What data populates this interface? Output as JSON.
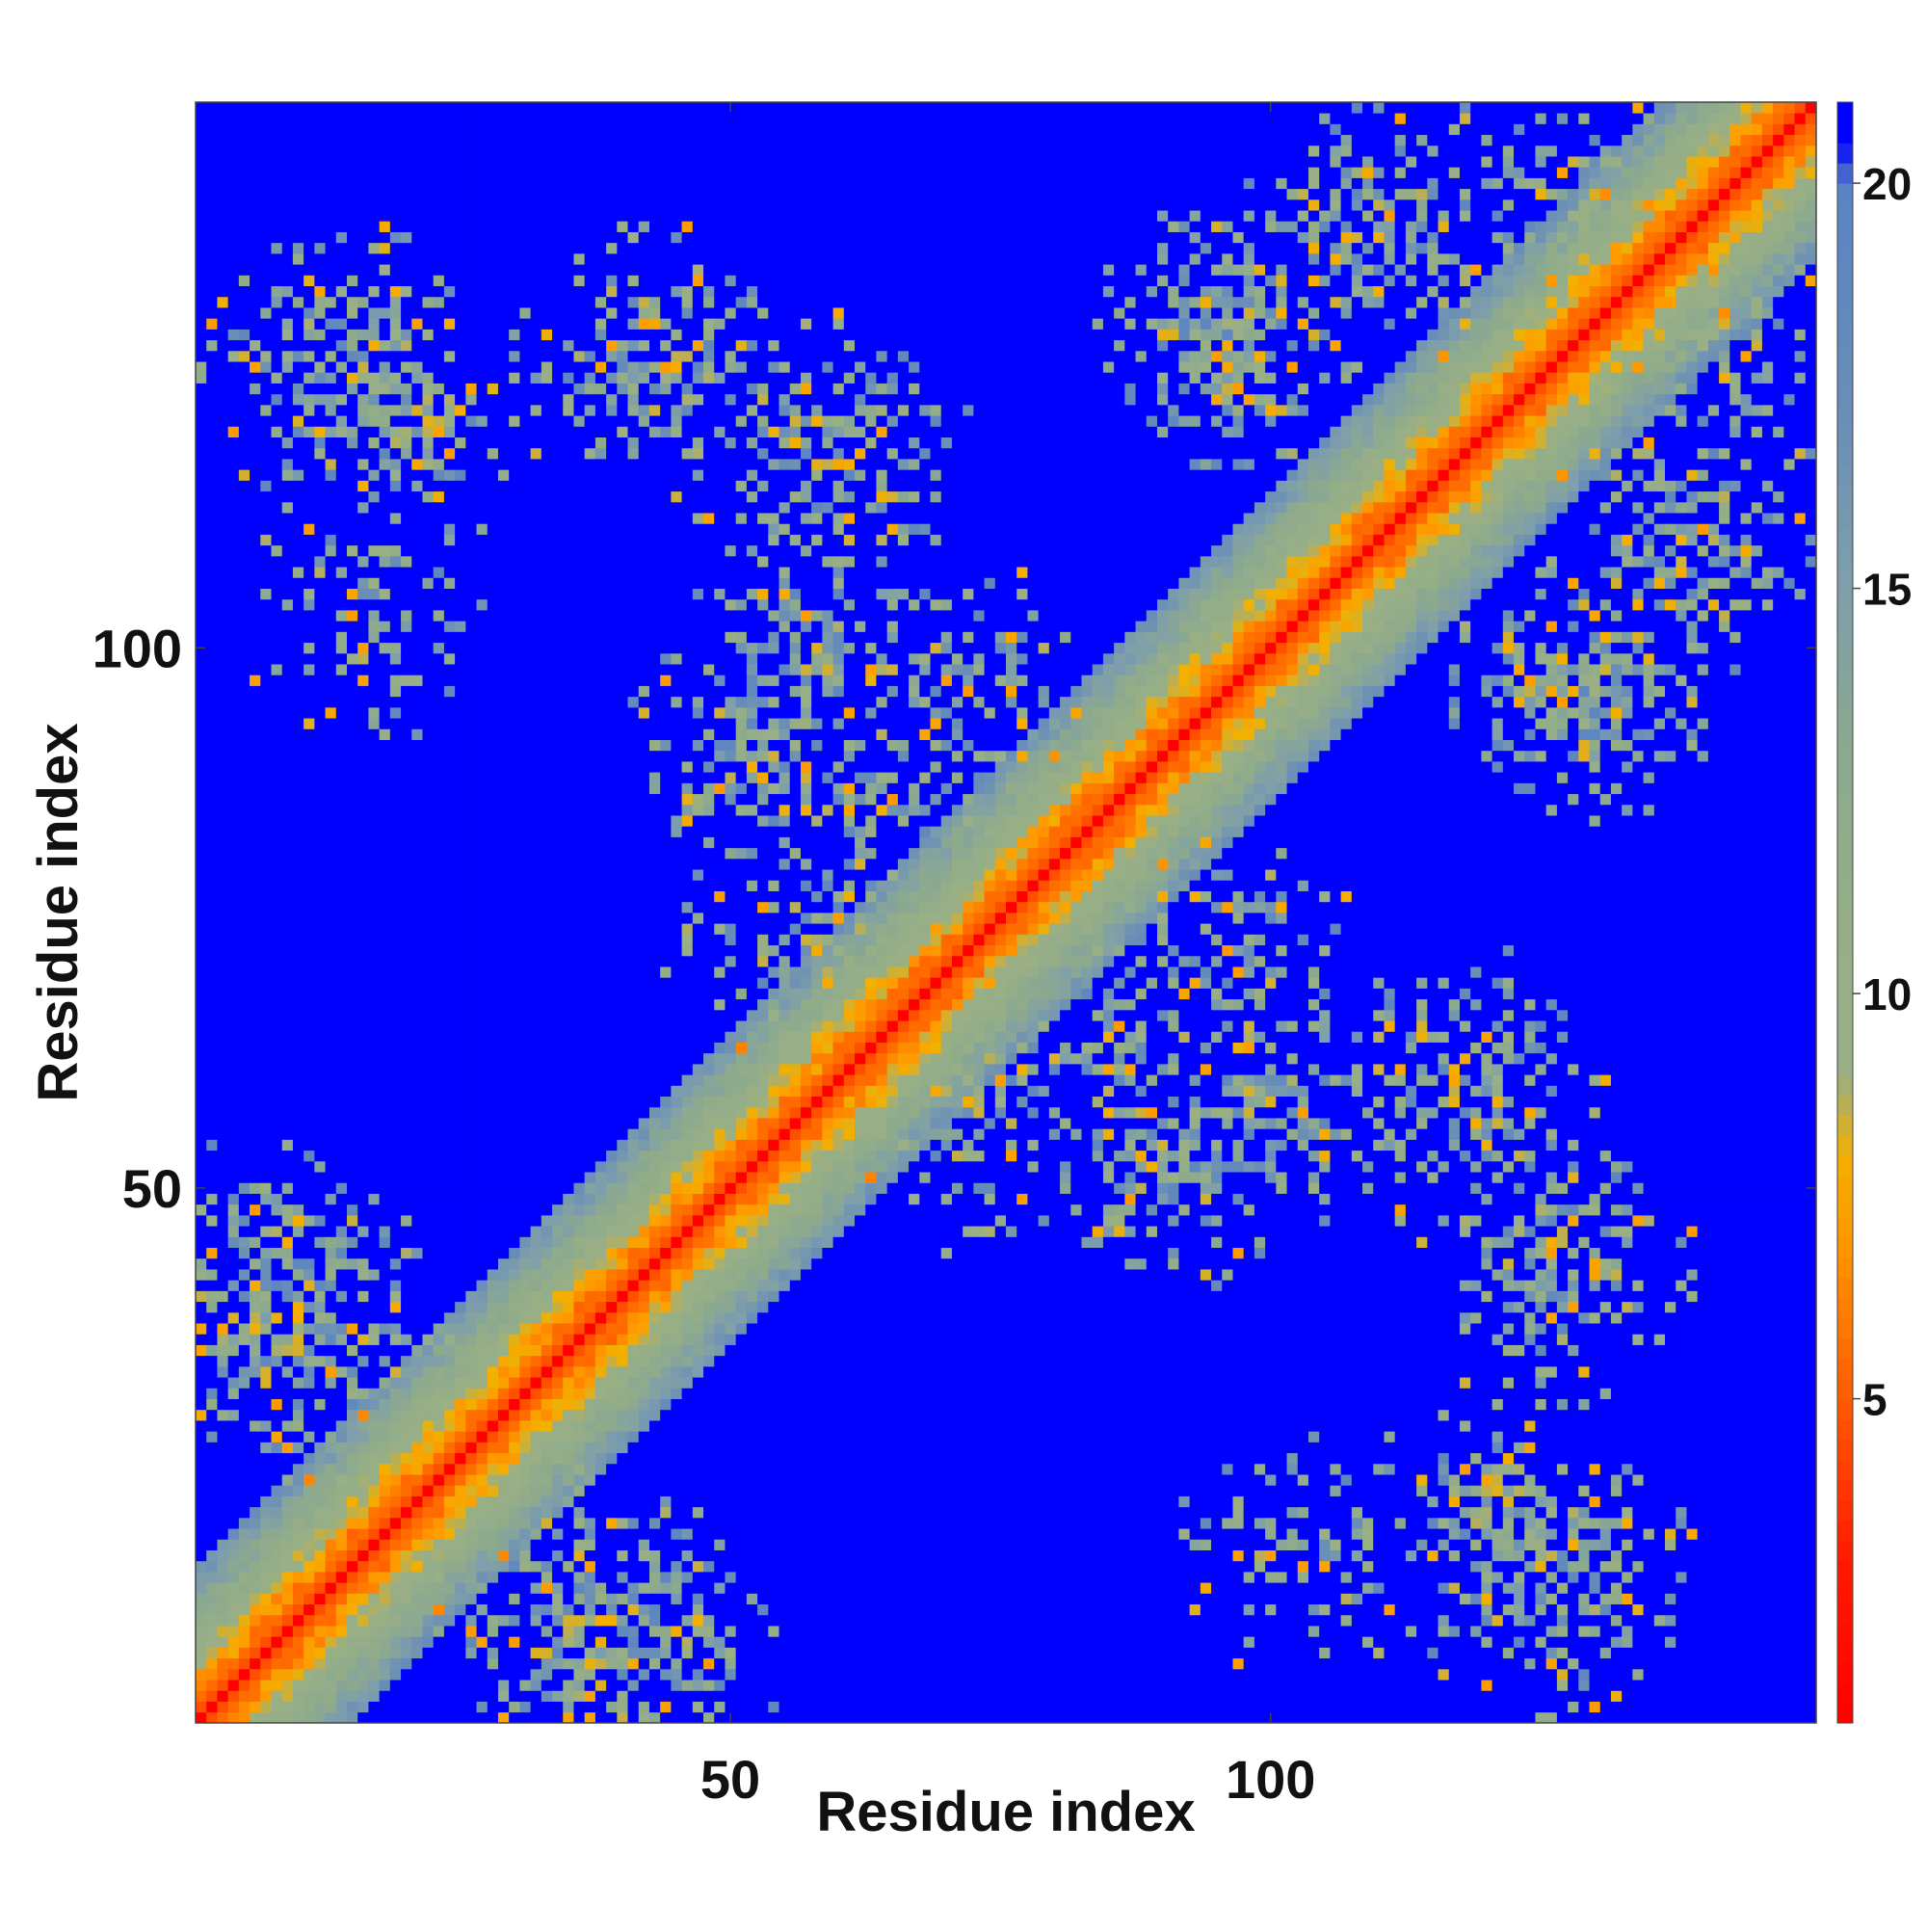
{
  "chart_data": {
    "type": "heatmap",
    "description_of_values": "pairwise residue distance map (symmetric); cell value = distance, clipped at colorbar max",
    "title": "",
    "xlabel": "Residue index",
    "ylabel": "Residue index",
    "n_residues": 150,
    "xlim": [
      1,
      150
    ],
    "ylim": [
      1,
      150
    ],
    "x_ticks": [
      50,
      100
    ],
    "y_ticks": [
      50,
      100
    ],
    "value_range": [
      1,
      21
    ],
    "colorbar": {
      "ticks": [
        5,
        10,
        15,
        20
      ],
      "placement": "right",
      "stops": [
        {
          "v": 1,
          "color": "#ff0000"
        },
        {
          "v": 3,
          "color": "#ff1a00"
        },
        {
          "v": 5,
          "color": "#ff5a00"
        },
        {
          "v": 7,
          "color": "#ff9900"
        },
        {
          "v": 8,
          "color": "#f2b000"
        },
        {
          "v": 9,
          "color": "#9aaf85"
        },
        {
          "v": 11,
          "color": "#95ae88"
        },
        {
          "v": 13,
          "color": "#8ca98f"
        },
        {
          "v": 15,
          "color": "#7f9faa"
        },
        {
          "v": 17,
          "color": "#6b8fb6"
        },
        {
          "v": 19,
          "color": "#5e86c0"
        },
        {
          "v": 20,
          "color": "#5b84c4"
        },
        {
          "v": 20.5,
          "color": "#0000ff"
        }
      ]
    },
    "contact_clusters": [
      {
        "i": 14,
        "j": 127,
        "strength": 0.75
      },
      {
        "i": 42,
        "j": 126,
        "strength": 0.7
      },
      {
        "i": 97,
        "j": 129,
        "strength": 0.8
      },
      {
        "i": 60,
        "j": 117,
        "strength": 0.65
      },
      {
        "i": 110,
        "j": 138,
        "strength": 0.7
      },
      {
        "i": 127,
        "j": 140,
        "strength": 0.55
      },
      {
        "i": 97,
        "j": 70,
        "strength": 0.55
      },
      {
        "i": 88,
        "j": 62,
        "strength": 0.5
      },
      {
        "i": 8,
        "j": 42,
        "strength": 0.7
      },
      {
        "i": 14,
        "j": 33,
        "strength": 0.5
      },
      {
        "i": 62,
        "j": 68,
        "strength": 0.6
      },
      {
        "i": 90,
        "j": 53,
        "strength": 0.7
      },
      {
        "i": 120,
        "j": 53,
        "strength": 0.55
      },
      {
        "i": 120,
        "j": 18,
        "strength": 0.7
      },
      {
        "i": 104,
        "j": 16,
        "strength": 0.45
      },
      {
        "i": 36,
        "j": 8,
        "strength": 0.75
      },
      {
        "i": 57,
        "j": 73,
        "strength": 0.55
      },
      {
        "i": 58,
        "j": 100,
        "strength": 0.6
      }
    ]
  }
}
